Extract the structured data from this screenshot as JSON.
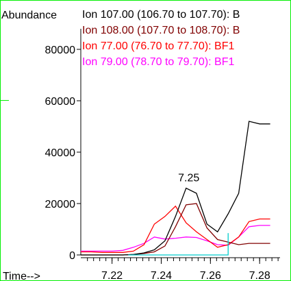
{
  "chart_data": {
    "type": "line",
    "ylabel": "Abundance",
    "xlabel": "Time-->",
    "xlim": [
      7.2073,
      7.2883
    ],
    "ylim": [
      0,
      88000
    ],
    "y_ticks": [
      0,
      20000,
      40000,
      60000,
      80000
    ],
    "y_tick_labels": [
      "0",
      "20000",
      "40000",
      "60000",
      "80000"
    ],
    "x_ticks": [
      7.22,
      7.24,
      7.26,
      7.28
    ],
    "x_tick_labels": [
      "7.22",
      "7.24",
      "7.26",
      "7.28"
    ],
    "x": [
      7.2073,
      7.2116,
      7.2159,
      7.2201,
      7.2244,
      7.2287,
      7.233,
      7.2372,
      7.2415,
      7.2458,
      7.2501,
      7.2543,
      7.2586,
      7.2629,
      7.2672,
      7.2715,
      7.2757,
      7.28,
      7.2843
    ],
    "series": [
      {
        "name": "Ion 107.00 (106.70 to 107.70): B",
        "color": "#000000",
        "values": [
          0,
          0,
          0,
          0,
          0,
          200,
          800,
          2000,
          5500,
          15000,
          26000,
          24000,
          12000,
          9000,
          16000,
          24000,
          52000,
          51000,
          51000
        ]
      },
      {
        "name": "Ion 108.00 (107.70 to 108.70): B",
        "color": "#800000",
        "values": [
          0,
          0,
          0,
          0,
          0,
          200,
          600,
          1200,
          3500,
          11000,
          19500,
          20000,
          10500,
          6000,
          5000,
          4000,
          4500,
          4500,
          4500
        ]
      },
      {
        "name": "Ion 77.00 (76.70 to 77.70): BF1",
        "color": "#ff0000",
        "values": [
          1200,
          1200,
          1000,
          1000,
          1000,
          1500,
          4000,
          12000,
          15000,
          19000,
          12500,
          9000,
          6000,
          3000,
          4000,
          7000,
          13000,
          14000,
          14000
        ]
      },
      {
        "name": "Ion 79.00 (78.70 to 79.70): BF1",
        "color": "#ff00ff",
        "values": [
          1500,
          1500,
          1500,
          1500,
          1800,
          3000,
          4500,
          7000,
          6200,
          6500,
          7000,
          6800,
          5500,
          4000,
          3800,
          7000,
          11000,
          11500,
          11500
        ]
      }
    ],
    "baseline": {
      "color": "#00cccc",
      "points": [
        [
          7.2266,
          0
        ],
        [
          7.2372,
          0
        ],
        [
          7.2672,
          0
        ],
        [
          7.2672,
          8500
        ]
      ]
    },
    "annotations": [
      {
        "text": "7.25",
        "x": 7.2512,
        "y": 26000
      }
    ],
    "legend_placement": "top-left",
    "grid": false
  }
}
